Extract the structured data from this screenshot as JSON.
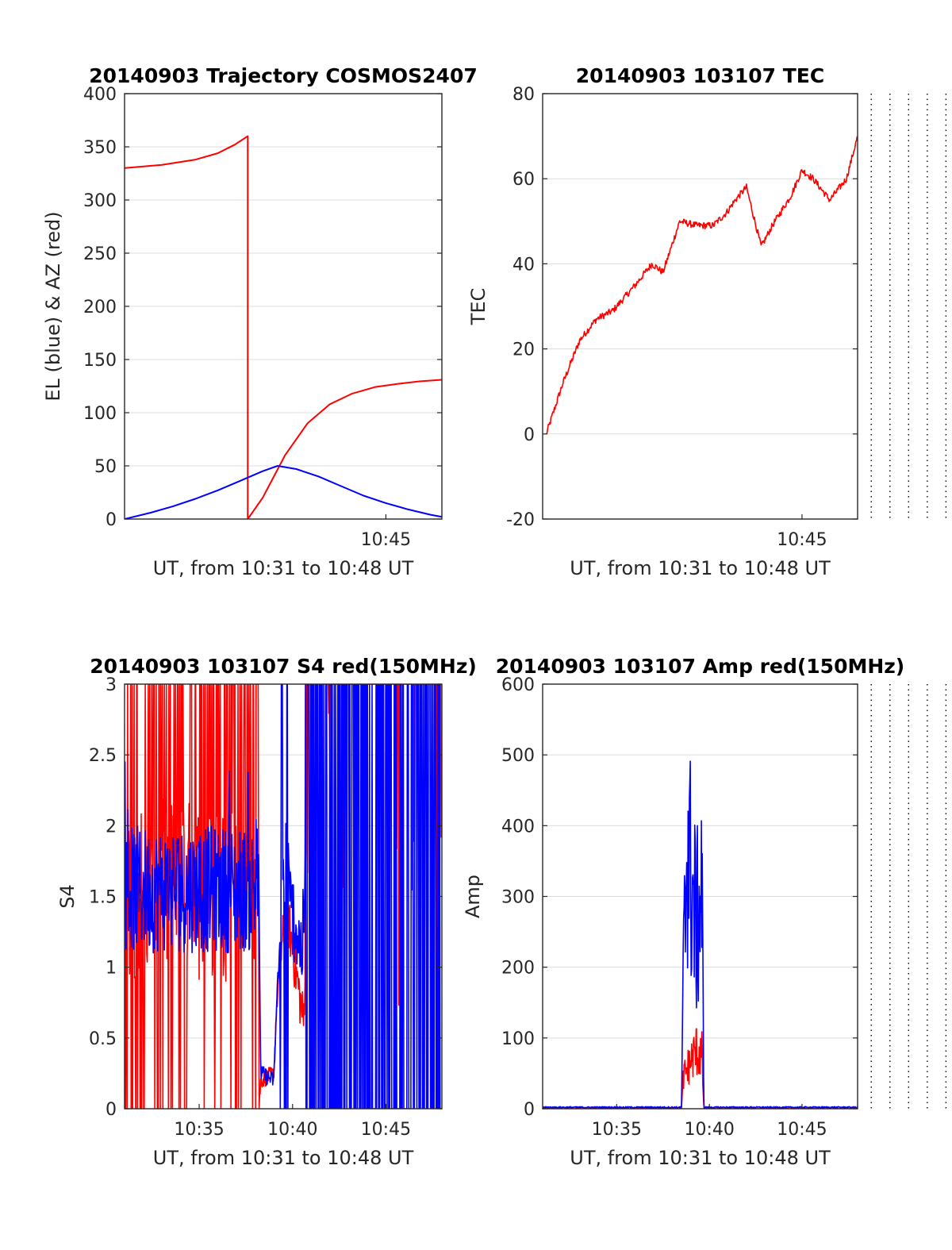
{
  "chart_data": [
    {
      "type": "line",
      "title": "20140903 Trajectory COSMOS2407",
      "xlabel": "UT, from 10:31 to 10:48 UT",
      "ylabel": "EL (blue) & AZ (red)",
      "xlim": [
        10.5167,
        10.8
      ],
      "ylim": [
        0,
        400
      ],
      "yticks": [
        "0",
        "50",
        "100",
        "150",
        "200",
        "250",
        "300",
        "350",
        "400"
      ],
      "xtick_labels": [
        {
          "x": 10.75,
          "label": "10:45"
        }
      ],
      "grid": true,
      "series": [
        {
          "color": "#ff0000",
          "x": [
            10.5167,
            10.55,
            10.58,
            10.6,
            10.615,
            10.6267,
            10.6267,
            10.64,
            10.66,
            10.68,
            10.7,
            10.72,
            10.74,
            10.76,
            10.78,
            10.8
          ],
          "y": [
            330,
            333,
            338,
            344,
            352,
            360,
            0,
            20,
            60,
            90,
            108,
            118,
            124,
            127,
            129.5,
            131
          ]
        },
        {
          "color": "#0000ff",
          "x": [
            10.5167,
            10.54,
            10.56,
            10.58,
            10.6,
            10.62,
            10.64,
            10.6533,
            10.67,
            10.69,
            10.71,
            10.73,
            10.75,
            10.77,
            10.79,
            10.8
          ],
          "y": [
            0,
            6,
            12,
            19,
            27,
            36,
            45,
            50,
            47,
            40,
            31,
            22,
            15,
            9,
            4,
            2
          ]
        }
      ]
    },
    {
      "type": "line",
      "title": "20140903 103107 TEC",
      "xlabel": "UT, from 10:31 to 10:48 UT",
      "ylabel": "TEC",
      "xlim": [
        10.5167,
        10.8
      ],
      "ylim": [
        -20,
        80
      ],
      "yticks": [
        "-20",
        "0",
        "20",
        "40",
        "60",
        "80"
      ],
      "xtick_labels": [
        {
          "x": 10.75,
          "label": "10:45"
        }
      ],
      "grid": true,
      "series": [
        {
          "color": "#ff0000",
          "x": [
            10.52,
            10.535,
            10.55,
            10.565,
            10.58,
            10.6,
            10.615,
            10.625,
            10.63,
            10.64,
            10.655,
            10.67,
            10.682,
            10.69,
            10.7,
            10.7133,
            10.7233,
            10.74,
            10.75,
            10.76,
            10.775,
            10.79,
            10.8
          ],
          "y": [
            0,
            12,
            22,
            27,
            29,
            35,
            40,
            38,
            42,
            50,
            49,
            49,
            52,
            55,
            58,
            44,
            49,
            56,
            62,
            60,
            55,
            60,
            70
          ]
        }
      ]
    },
    {
      "type": "line",
      "title": "20140903 103107 S4 red(150MHz)",
      "xlabel": "UT, from 10:31 to 10:48 UT",
      "ylabel": "S4",
      "xlim": [
        10.5167,
        10.8
      ],
      "ylim": [
        0,
        3
      ],
      "yticks": [
        "0",
        "0.5",
        "1",
        "1.5",
        "2",
        "2.5",
        "3"
      ],
      "xtick_labels": [
        {
          "x": 10.5833,
          "label": "10:35"
        },
        {
          "x": 10.6667,
          "label": "10:40"
        },
        {
          "x": 10.75,
          "label": "10:45"
        }
      ],
      "grid": true,
      "series": [
        {
          "color": "#ff0000",
          "x": [
            10.5167,
            10.6367,
            10.6383,
            10.65,
            10.6517,
            10.655,
            10.6617,
            10.6767,
            10.6783
          ],
          "y": [
            1.5,
            0.0,
            0.2,
            0.25,
            0.6,
            1.0,
            1.4,
            0.6,
            1.2
          ],
          "note_range": [
            0,
            3
          ]
        },
        {
          "color": "#0000ff",
          "x": [
            10.5167,
            10.55,
            10.6,
            10.6367,
            10.6383,
            10.65,
            10.6533,
            10.6617,
            10.6633,
            10.675,
            10.6783,
            10.6833,
            10.8
          ],
          "y": [
            1.55,
            1.6,
            1.5,
            1.5,
            0.25,
            0.2,
            0.9,
            1.9,
            1.5,
            1.1,
            1.6,
            1.6,
            1.6
          ]
        }
      ]
    },
    {
      "type": "line",
      "title": "20140903 103107 Amp red(150MHz)",
      "xlabel": "UT, from 10:31 to 10:48 UT",
      "ylabel": "Amp",
      "xlim": [
        10.5167,
        10.8
      ],
      "ylim": [
        0,
        600
      ],
      "yticks": [
        "0",
        "100",
        "200",
        "300",
        "400",
        "500",
        "600"
      ],
      "xtick_labels": [
        {
          "x": 10.5833,
          "label": "10:35"
        },
        {
          "x": 10.6667,
          "label": "10:40"
        },
        {
          "x": 10.75,
          "label": "10:45"
        }
      ],
      "grid": true,
      "series": [
        {
          "color": "#ff0000",
          "x": [
            10.5167,
            10.6417,
            10.6433,
            10.65,
            10.655,
            10.66,
            10.6617,
            10.8
          ],
          "y": [
            0,
            0,
            60,
            90,
            110,
            100,
            0,
            0
          ]
        },
        {
          "color": "#0000ff",
          "x": [
            10.5167,
            10.6417,
            10.6433,
            10.6467,
            10.65,
            10.655,
            10.66,
            10.6617,
            10.8
          ],
          "y": [
            2,
            2,
            250,
            540,
            450,
            350,
            430,
            2,
            2
          ]
        }
      ]
    }
  ]
}
